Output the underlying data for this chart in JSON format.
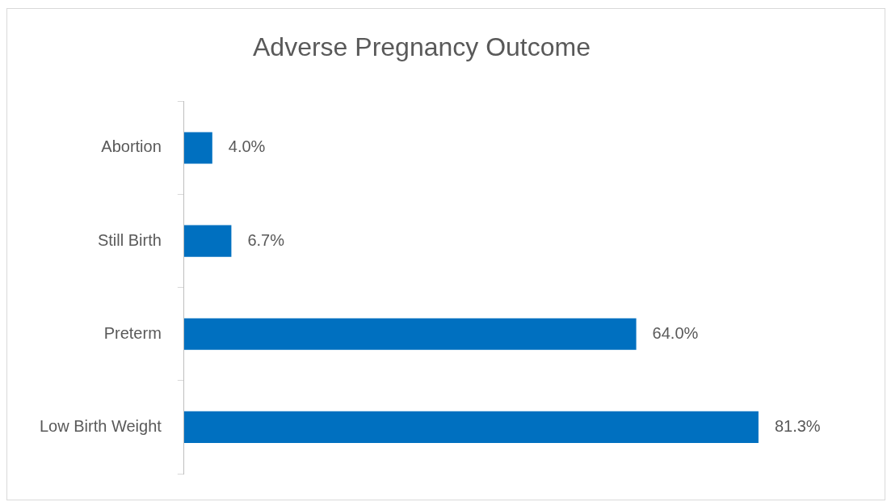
{
  "chart_data": {
    "type": "bar",
    "orientation": "horizontal",
    "title": "Adverse Pregnancy Outcome",
    "categories": [
      "Abortion",
      "Still Birth",
      "Preterm",
      "Low Birth Weight"
    ],
    "values": [
      4.0,
      6.7,
      64.0,
      81.3
    ],
    "value_labels": [
      "4.0%",
      "6.7%",
      "64.0%",
      "81.3%"
    ],
    "color": "#0070c0"
  }
}
